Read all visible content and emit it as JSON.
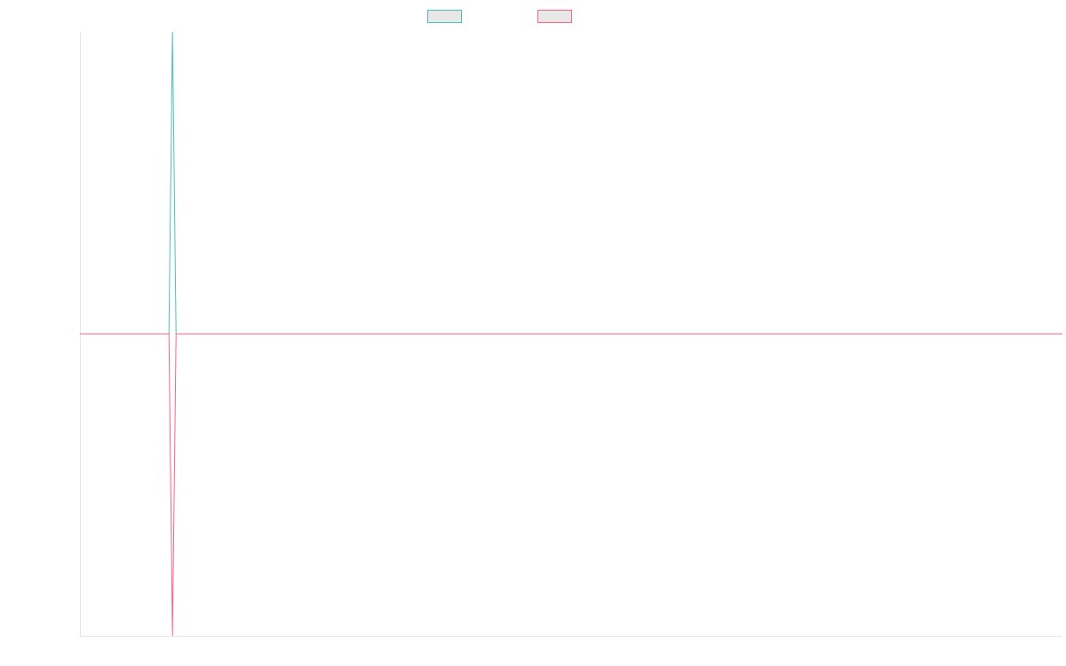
{
  "chart_data": {
    "type": "line",
    "title": "",
    "xlabel": "",
    "ylabel": "",
    "x": [
      0,
      1,
      2,
      3,
      4,
      5,
      6,
      7,
      8,
      9,
      10,
      11,
      12,
      13,
      14,
      15,
      16,
      17,
      18,
      19,
      20,
      21,
      22,
      23,
      24,
      25,
      26,
      27,
      28,
      29,
      30,
      31,
      32,
      33,
      34,
      35,
      36,
      37,
      38,
      39,
      40,
      41,
      42,
      43,
      44,
      45,
      46,
      47,
      48,
      49,
      50,
      51,
      52,
      53,
      54,
      55,
      56,
      57,
      58,
      59,
      60,
      61,
      62,
      63,
      64,
      65,
      66,
      67,
      68,
      69,
      70,
      71,
      72,
      73,
      74,
      75,
      76,
      77,
      78,
      79,
      80,
      81,
      82,
      83,
      84,
      85,
      86,
      87,
      88,
      89,
      90,
      91,
      92,
      93,
      94,
      95,
      96,
      97,
      98,
      99,
      100,
      101,
      102,
      103,
      104,
      105,
      106,
      107,
      108,
      109,
      110,
      111,
      112,
      113,
      114,
      115,
      116,
      117,
      118,
      119,
      120,
      121,
      122,
      123,
      124,
      125,
      126,
      127,
      128,
      129,
      130,
      131,
      132,
      133,
      134,
      135,
      136,
      137,
      138,
      139,
      140,
      141,
      142,
      143,
      144,
      145,
      146,
      147,
      148,
      149,
      150,
      151,
      152,
      153,
      154,
      155,
      156,
      157,
      158,
      159,
      160,
      161,
      162,
      163,
      164,
      165,
      166,
      167,
      168,
      169,
      170,
      171,
      172,
      173,
      174,
      175,
      176,
      177,
      178,
      179,
      180,
      181,
      182,
      183,
      184,
      185,
      186,
      187,
      188,
      189,
      190,
      191,
      192,
      193,
      194,
      195,
      196,
      197,
      198,
      199,
      200,
      201,
      202,
      203,
      204,
      205,
      206,
      207,
      208,
      209,
      210,
      211,
      212,
      213,
      214,
      215,
      216,
      217,
      218,
      219,
      220,
      221,
      222,
      223,
      224,
      225,
      226,
      227,
      228,
      229,
      230,
      231,
      232,
      233,
      234,
      235,
      236,
      237,
      238,
      239,
      240,
      241,
      242,
      243,
      244,
      245,
      246,
      247,
      248,
      249,
      250,
      251,
      252,
      253,
      254,
      255,
      256,
      257,
      258,
      259,
      260,
      261,
      262,
      263,
      264,
      265,
      266,
      267,
      268,
      269,
      270,
      271,
      272,
      273,
      274,
      275,
      276
    ],
    "xlim": [
      0,
      276
    ],
    "ylim": [
      -1,
      1
    ],
    "grid": false,
    "legend_position": "top-center",
    "series": [
      {
        "name": "",
        "color": "#4bc0c0",
        "spike_index": 26,
        "spike_value": 1,
        "baseline": 0
      },
      {
        "name": "",
        "color": "#ff6384",
        "spike_index": 26,
        "spike_value": -1,
        "baseline": 0
      }
    ]
  }
}
